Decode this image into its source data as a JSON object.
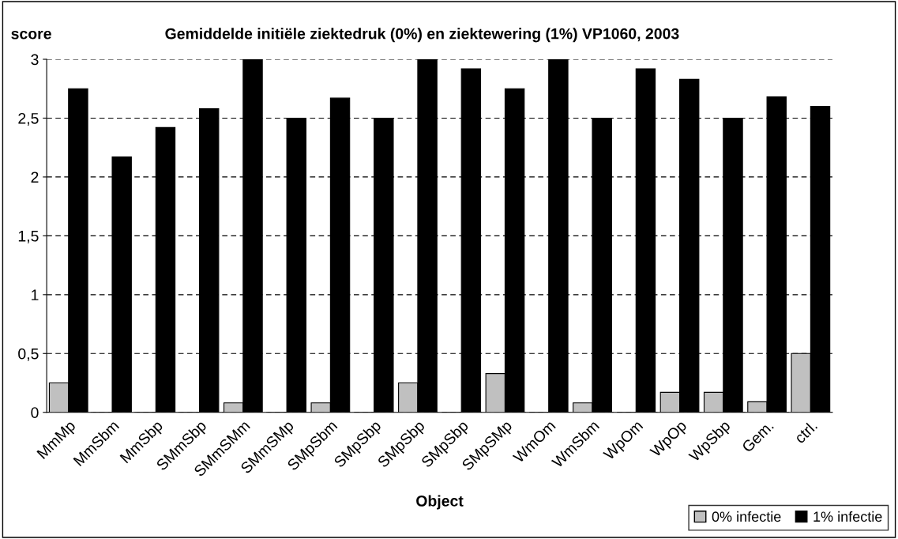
{
  "chart_data": {
    "type": "bar",
    "title": "Gemiddelde initiële ziektedruk (0%) en ziektewering (1%) VP1060, 2003",
    "xlabel": "Object",
    "ylabel": "score",
    "categories": [
      "MmMp",
      "MmSbm",
      "MmSbp",
      "SMmSbp",
      "SMmSMm",
      "SMmSMp",
      "SMpSbm",
      "SMpSbp",
      "SMpSbp",
      "SMpSbp",
      "SMpSMp",
      "WmOm",
      "WmSbm",
      "WpOm",
      "WpOp",
      "WpSbp",
      "Gem.",
      "ctrl."
    ],
    "series": [
      {
        "name": "0% infectie",
        "color": "#c0c0c0",
        "values": [
          0.25,
          0,
          0,
          0,
          0.08,
          0,
          0.08,
          0,
          0.25,
          0,
          0.33,
          0,
          0.08,
          0,
          0.17,
          0.17,
          0.09,
          0.5
        ]
      },
      {
        "name": "1% infectie",
        "color": "#000000",
        "values": [
          2.75,
          2.17,
          2.42,
          2.58,
          3,
          2.5,
          2.67,
          2.5,
          3,
          2.92,
          2.75,
          3,
          2.5,
          2.92,
          2.83,
          2.5,
          2.68,
          2.6
        ]
      }
    ],
    "ylim": [
      0,
      3
    ],
    "yticks": [
      0,
      {
        "value": 0.5,
        "label": "0,5"
      },
      1,
      {
        "value": 1.5,
        "label": "1,5"
      },
      2,
      {
        "value": 2.5,
        "label": "2,5"
      },
      3
    ],
    "grid": "y",
    "legend": "bottom right"
  }
}
